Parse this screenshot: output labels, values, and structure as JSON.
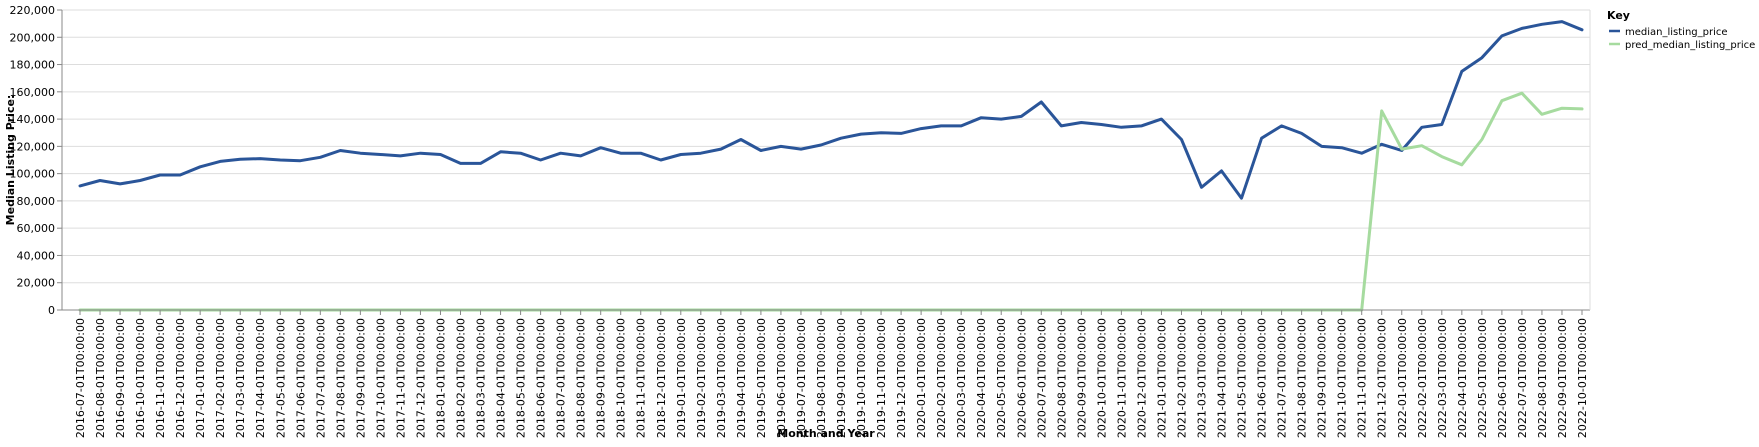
{
  "chart_data": {
    "type": "line",
    "xlabel": "Month and Year",
    "ylabel": "Median Listing Price:",
    "ylim": [
      0,
      220000
    ],
    "yticks": [
      0,
      20000,
      40000,
      60000,
      80000,
      100000,
      120000,
      140000,
      160000,
      180000,
      200000,
      220000
    ],
    "ytick_labels": [
      "0",
      "20,000",
      "40,000",
      "60,000",
      "80,000",
      "100,000",
      "120,000",
      "140,000",
      "160,000",
      "180,000",
      "200,000",
      "220,000"
    ],
    "grid": true,
    "legend": {
      "title": "Key",
      "position": "right"
    },
    "x": [
      "2016-07-01T00:00:00",
      "2016-08-01T00:00:00",
      "2016-09-01T00:00:00",
      "2016-10-01T00:00:00",
      "2016-11-01T00:00:00",
      "2016-12-01T00:00:00",
      "2017-01-01T00:00:00",
      "2017-02-01T00:00:00",
      "2017-03-01T00:00:00",
      "2017-04-01T00:00:00",
      "2017-05-01T00:00:00",
      "2017-06-01T00:00:00",
      "2017-07-01T00:00:00",
      "2017-08-01T00:00:00",
      "2017-09-01T00:00:00",
      "2017-10-01T00:00:00",
      "2017-11-01T00:00:00",
      "2017-12-01T00:00:00",
      "2018-01-01T00:00:00",
      "2018-02-01T00:00:00",
      "2018-03-01T00:00:00",
      "2018-04-01T00:00:00",
      "2018-05-01T00:00:00",
      "2018-06-01T00:00:00",
      "2018-07-01T00:00:00",
      "2018-08-01T00:00:00",
      "2018-09-01T00:00:00",
      "2018-10-01T00:00:00",
      "2018-11-01T00:00:00",
      "2018-12-01T00:00:00",
      "2019-01-01T00:00:00",
      "2019-02-01T00:00:00",
      "2019-03-01T00:00:00",
      "2019-04-01T00:00:00",
      "2019-05-01T00:00:00",
      "2019-06-01T00:00:00",
      "2019-07-01T00:00:00",
      "2019-08-01T00:00:00",
      "2019-09-01T00:00:00",
      "2019-10-01T00:00:00",
      "2019-11-01T00:00:00",
      "2019-12-01T00:00:00",
      "2020-01-01T00:00:00",
      "2020-02-01T00:00:00",
      "2020-03-01T00:00:00",
      "2020-04-01T00:00:00",
      "2020-05-01T00:00:00",
      "2020-06-01T00:00:00",
      "2020-07-01T00:00:00",
      "2020-08-01T00:00:00",
      "2020-09-01T00:00:00",
      "2020-10-01T00:00:00",
      "2020-11-01T00:00:00",
      "2020-12-01T00:00:00",
      "2021-01-01T00:00:00",
      "2021-02-01T00:00:00",
      "2021-03-01T00:00:00",
      "2021-04-01T00:00:00",
      "2021-05-01T00:00:00",
      "2021-06-01T00:00:00",
      "2021-07-01T00:00:00",
      "2021-08-01T00:00:00",
      "2021-09-01T00:00:00",
      "2021-10-01T00:00:00",
      "2021-11-01T00:00:00",
      "2021-12-01T00:00:00",
      "2022-01-01T00:00:00",
      "2022-02-01T00:00:00",
      "2022-03-01T00:00:00",
      "2022-04-01T00:00:00",
      "2022-05-01T00:00:00",
      "2022-06-01T00:00:00",
      "2022-07-01T00:00:00",
      "2022-08-01T00:00:00",
      "2022-09-01T00:00:00",
      "2022-10-01T00:00:00"
    ],
    "series": [
      {
        "name": "median_listing_price",
        "color": "#2a5599",
        "values": [
          91000,
          95000,
          92500,
          95000,
          99000,
          99000,
          105000,
          109000,
          110500,
          111000,
          110000,
          109500,
          112000,
          117000,
          115000,
          114000,
          113000,
          115000,
          114000,
          107500,
          107500,
          116000,
          115000,
          110000,
          115000,
          113000,
          119000,
          115000,
          115000,
          110000,
          114000,
          115000,
          118000,
          125000,
          117000,
          120000,
          118000,
          121000,
          126000,
          129000,
          130000,
          129500,
          133000,
          135000,
          135000,
          141000,
          140000,
          142000,
          152500,
          135000,
          137500,
          136000,
          134000,
          135000,
          140000,
          125000,
          90000,
          102000,
          82000,
          126000,
          135000,
          129500,
          120000,
          119000,
          115000,
          121500,
          117000,
          134000,
          136000,
          175000,
          185000,
          201000,
          206500,
          209500,
          211500,
          205500
        ]
      },
      {
        "name": "pred_median_listing_price",
        "color": "#a6db9f",
        "values": [
          0,
          0,
          0,
          0,
          0,
          0,
          0,
          0,
          0,
          0,
          0,
          0,
          0,
          0,
          0,
          0,
          0,
          0,
          0,
          0,
          0,
          0,
          0,
          0,
          0,
          0,
          0,
          0,
          0,
          0,
          0,
          0,
          0,
          0,
          0,
          0,
          0,
          0,
          0,
          0,
          0,
          0,
          0,
          0,
          0,
          0,
          0,
          0,
          0,
          0,
          0,
          0,
          0,
          0,
          0,
          0,
          0,
          0,
          0,
          0,
          0,
          0,
          0,
          0,
          0,
          146000,
          118000,
          120500,
          112500,
          106500,
          125000,
          153500,
          159000,
          143500,
          148000,
          147500
        ]
      }
    ]
  }
}
